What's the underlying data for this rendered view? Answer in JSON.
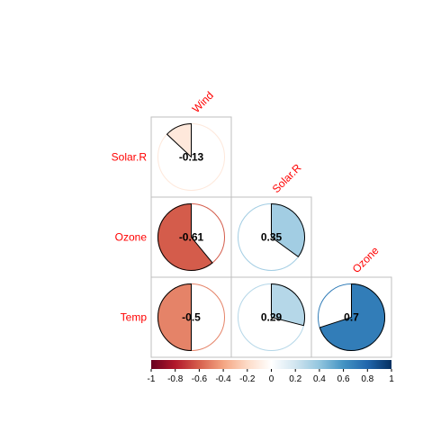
{
  "chart_data": {
    "type": "heatmap",
    "style": "corrplot-pie-lower",
    "variables_cols": [
      "Wind",
      "Solar.R",
      "Ozone"
    ],
    "variables_rows": [
      "Solar.R",
      "Ozone",
      "Temp"
    ],
    "cells": [
      {
        "row": 0,
        "col": 0,
        "value": -0.13,
        "label": "-0.13"
      },
      {
        "row": 1,
        "col": 0,
        "value": -0.61,
        "label": "-0.61"
      },
      {
        "row": 1,
        "col": 1,
        "value": 0.35,
        "label": "0.35"
      },
      {
        "row": 2,
        "col": 0,
        "value": -0.5,
        "label": "-0.5"
      },
      {
        "row": 2,
        "col": 1,
        "value": 0.29,
        "label": "0.29"
      },
      {
        "row": 2,
        "col": 2,
        "value": 0.7,
        "label": "0.7"
      }
    ],
    "colorbar": {
      "range": [
        -1,
        1
      ],
      "ticks": [
        "-1",
        "-0.8",
        "-0.6",
        "-0.4",
        "-0.2",
        "0",
        "0.2",
        "0.4",
        "0.6",
        "0.8",
        "1"
      ]
    },
    "label_color": "#ff0000",
    "palette": [
      "#67001f",
      "#b2182b",
      "#d6604d",
      "#f4a582",
      "#fddbc7",
      "#ffffff",
      "#d1e5f0",
      "#92c5de",
      "#4393c3",
      "#2166ac",
      "#053061"
    ]
  }
}
